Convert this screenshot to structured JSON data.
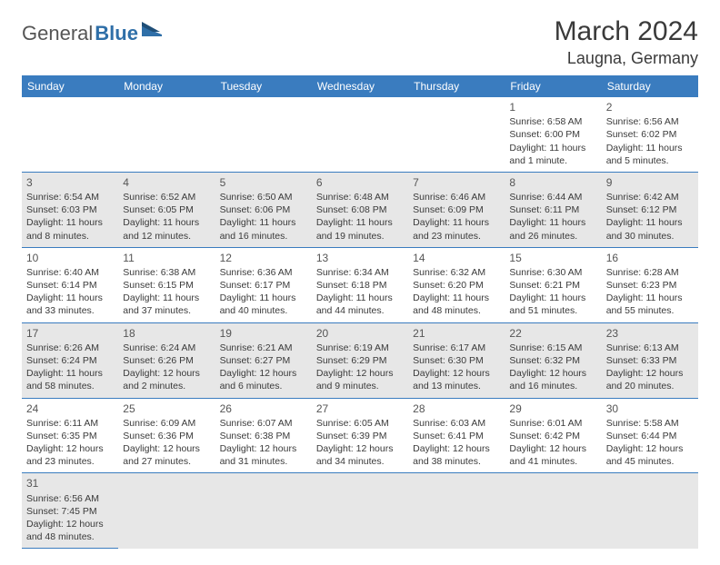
{
  "logo": {
    "part1": "General",
    "part2": "Blue"
  },
  "header": {
    "month": "March 2024",
    "location": "Laugna, Germany"
  },
  "colors": {
    "header_bg": "#3a7cbf",
    "header_text": "#ffffff",
    "alt_row_bg": "#e7e7e7",
    "cell_border": "#3a7cbf",
    "text": "#3a3a3a",
    "logo_blue": "#2f6fa8"
  },
  "dayHeaders": [
    "Sunday",
    "Monday",
    "Tuesday",
    "Wednesday",
    "Thursday",
    "Friday",
    "Saturday"
  ],
  "grid": {
    "rows": 6,
    "cols": 7,
    "alt_rows": [
      1,
      3,
      5
    ]
  },
  "days": [
    {
      "row": 0,
      "col": 5,
      "num": "1",
      "sunrise": "Sunrise: 6:58 AM",
      "sunset": "Sunset: 6:00 PM",
      "daylight1": "Daylight: 11 hours",
      "daylight2": "and 1 minute."
    },
    {
      "row": 0,
      "col": 6,
      "num": "2",
      "sunrise": "Sunrise: 6:56 AM",
      "sunset": "Sunset: 6:02 PM",
      "daylight1": "Daylight: 11 hours",
      "daylight2": "and 5 minutes."
    },
    {
      "row": 1,
      "col": 0,
      "num": "3",
      "sunrise": "Sunrise: 6:54 AM",
      "sunset": "Sunset: 6:03 PM",
      "daylight1": "Daylight: 11 hours",
      "daylight2": "and 8 minutes."
    },
    {
      "row": 1,
      "col": 1,
      "num": "4",
      "sunrise": "Sunrise: 6:52 AM",
      "sunset": "Sunset: 6:05 PM",
      "daylight1": "Daylight: 11 hours",
      "daylight2": "and 12 minutes."
    },
    {
      "row": 1,
      "col": 2,
      "num": "5",
      "sunrise": "Sunrise: 6:50 AM",
      "sunset": "Sunset: 6:06 PM",
      "daylight1": "Daylight: 11 hours",
      "daylight2": "and 16 minutes."
    },
    {
      "row": 1,
      "col": 3,
      "num": "6",
      "sunrise": "Sunrise: 6:48 AM",
      "sunset": "Sunset: 6:08 PM",
      "daylight1": "Daylight: 11 hours",
      "daylight2": "and 19 minutes."
    },
    {
      "row": 1,
      "col": 4,
      "num": "7",
      "sunrise": "Sunrise: 6:46 AM",
      "sunset": "Sunset: 6:09 PM",
      "daylight1": "Daylight: 11 hours",
      "daylight2": "and 23 minutes."
    },
    {
      "row": 1,
      "col": 5,
      "num": "8",
      "sunrise": "Sunrise: 6:44 AM",
      "sunset": "Sunset: 6:11 PM",
      "daylight1": "Daylight: 11 hours",
      "daylight2": "and 26 minutes."
    },
    {
      "row": 1,
      "col": 6,
      "num": "9",
      "sunrise": "Sunrise: 6:42 AM",
      "sunset": "Sunset: 6:12 PM",
      "daylight1": "Daylight: 11 hours",
      "daylight2": "and 30 minutes."
    },
    {
      "row": 2,
      "col": 0,
      "num": "10",
      "sunrise": "Sunrise: 6:40 AM",
      "sunset": "Sunset: 6:14 PM",
      "daylight1": "Daylight: 11 hours",
      "daylight2": "and 33 minutes."
    },
    {
      "row": 2,
      "col": 1,
      "num": "11",
      "sunrise": "Sunrise: 6:38 AM",
      "sunset": "Sunset: 6:15 PM",
      "daylight1": "Daylight: 11 hours",
      "daylight2": "and 37 minutes."
    },
    {
      "row": 2,
      "col": 2,
      "num": "12",
      "sunrise": "Sunrise: 6:36 AM",
      "sunset": "Sunset: 6:17 PM",
      "daylight1": "Daylight: 11 hours",
      "daylight2": "and 40 minutes."
    },
    {
      "row": 2,
      "col": 3,
      "num": "13",
      "sunrise": "Sunrise: 6:34 AM",
      "sunset": "Sunset: 6:18 PM",
      "daylight1": "Daylight: 11 hours",
      "daylight2": "and 44 minutes."
    },
    {
      "row": 2,
      "col": 4,
      "num": "14",
      "sunrise": "Sunrise: 6:32 AM",
      "sunset": "Sunset: 6:20 PM",
      "daylight1": "Daylight: 11 hours",
      "daylight2": "and 48 minutes."
    },
    {
      "row": 2,
      "col": 5,
      "num": "15",
      "sunrise": "Sunrise: 6:30 AM",
      "sunset": "Sunset: 6:21 PM",
      "daylight1": "Daylight: 11 hours",
      "daylight2": "and 51 minutes."
    },
    {
      "row": 2,
      "col": 6,
      "num": "16",
      "sunrise": "Sunrise: 6:28 AM",
      "sunset": "Sunset: 6:23 PM",
      "daylight1": "Daylight: 11 hours",
      "daylight2": "and 55 minutes."
    },
    {
      "row": 3,
      "col": 0,
      "num": "17",
      "sunrise": "Sunrise: 6:26 AM",
      "sunset": "Sunset: 6:24 PM",
      "daylight1": "Daylight: 11 hours",
      "daylight2": "and 58 minutes."
    },
    {
      "row": 3,
      "col": 1,
      "num": "18",
      "sunrise": "Sunrise: 6:24 AM",
      "sunset": "Sunset: 6:26 PM",
      "daylight1": "Daylight: 12 hours",
      "daylight2": "and 2 minutes."
    },
    {
      "row": 3,
      "col": 2,
      "num": "19",
      "sunrise": "Sunrise: 6:21 AM",
      "sunset": "Sunset: 6:27 PM",
      "daylight1": "Daylight: 12 hours",
      "daylight2": "and 6 minutes."
    },
    {
      "row": 3,
      "col": 3,
      "num": "20",
      "sunrise": "Sunrise: 6:19 AM",
      "sunset": "Sunset: 6:29 PM",
      "daylight1": "Daylight: 12 hours",
      "daylight2": "and 9 minutes."
    },
    {
      "row": 3,
      "col": 4,
      "num": "21",
      "sunrise": "Sunrise: 6:17 AM",
      "sunset": "Sunset: 6:30 PM",
      "daylight1": "Daylight: 12 hours",
      "daylight2": "and 13 minutes."
    },
    {
      "row": 3,
      "col": 5,
      "num": "22",
      "sunrise": "Sunrise: 6:15 AM",
      "sunset": "Sunset: 6:32 PM",
      "daylight1": "Daylight: 12 hours",
      "daylight2": "and 16 minutes."
    },
    {
      "row": 3,
      "col": 6,
      "num": "23",
      "sunrise": "Sunrise: 6:13 AM",
      "sunset": "Sunset: 6:33 PM",
      "daylight1": "Daylight: 12 hours",
      "daylight2": "and 20 minutes."
    },
    {
      "row": 4,
      "col": 0,
      "num": "24",
      "sunrise": "Sunrise: 6:11 AM",
      "sunset": "Sunset: 6:35 PM",
      "daylight1": "Daylight: 12 hours",
      "daylight2": "and 23 minutes."
    },
    {
      "row": 4,
      "col": 1,
      "num": "25",
      "sunrise": "Sunrise: 6:09 AM",
      "sunset": "Sunset: 6:36 PM",
      "daylight1": "Daylight: 12 hours",
      "daylight2": "and 27 minutes."
    },
    {
      "row": 4,
      "col": 2,
      "num": "26",
      "sunrise": "Sunrise: 6:07 AM",
      "sunset": "Sunset: 6:38 PM",
      "daylight1": "Daylight: 12 hours",
      "daylight2": "and 31 minutes."
    },
    {
      "row": 4,
      "col": 3,
      "num": "27",
      "sunrise": "Sunrise: 6:05 AM",
      "sunset": "Sunset: 6:39 PM",
      "daylight1": "Daylight: 12 hours",
      "daylight2": "and 34 minutes."
    },
    {
      "row": 4,
      "col": 4,
      "num": "28",
      "sunrise": "Sunrise: 6:03 AM",
      "sunset": "Sunset: 6:41 PM",
      "daylight1": "Daylight: 12 hours",
      "daylight2": "and 38 minutes."
    },
    {
      "row": 4,
      "col": 5,
      "num": "29",
      "sunrise": "Sunrise: 6:01 AM",
      "sunset": "Sunset: 6:42 PM",
      "daylight1": "Daylight: 12 hours",
      "daylight2": "and 41 minutes."
    },
    {
      "row": 4,
      "col": 6,
      "num": "30",
      "sunrise": "Sunrise: 5:58 AM",
      "sunset": "Sunset: 6:44 PM",
      "daylight1": "Daylight: 12 hours",
      "daylight2": "and 45 minutes."
    },
    {
      "row": 5,
      "col": 0,
      "num": "31",
      "sunrise": "Sunrise: 6:56 AM",
      "sunset": "Sunset: 7:45 PM",
      "daylight1": "Daylight: 12 hours",
      "daylight2": "and 48 minutes."
    }
  ]
}
